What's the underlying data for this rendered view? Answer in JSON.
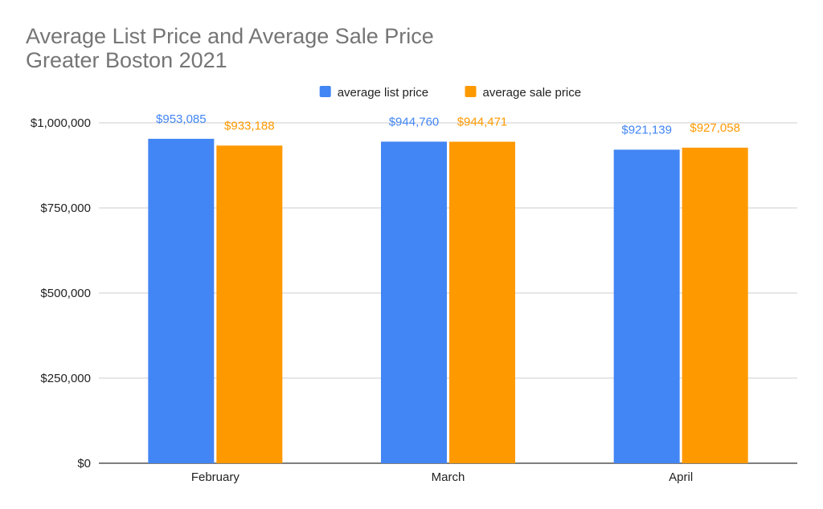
{
  "chart_data": {
    "type": "bar",
    "title_lines": [
      "Average List Price and Average Sale Price",
      "Greater Boston 2021"
    ],
    "categories": [
      "February",
      "March",
      "April"
    ],
    "series": [
      {
        "name": "average list price",
        "color": "#4285f4",
        "values": [
          953085,
          944760,
          921139
        ],
        "labels": [
          "$953,085",
          "$944,760",
          "$921,139"
        ]
      },
      {
        "name": "average sale price",
        "color": "#ff9900",
        "values": [
          933188,
          944471,
          927058
        ],
        "labels": [
          "$933,188",
          "$944,471",
          "$927,058"
        ]
      }
    ],
    "ylim": [
      0,
      1000000
    ],
    "yticks": [
      0,
      250000,
      500000,
      750000,
      1000000
    ],
    "ytick_labels": [
      "$0",
      "$250,000",
      "$500,000",
      "$750,000",
      "$1,000,000"
    ],
    "grid": true,
    "legend_position": "top-center",
    "xlabel": "",
    "ylabel": ""
  }
}
